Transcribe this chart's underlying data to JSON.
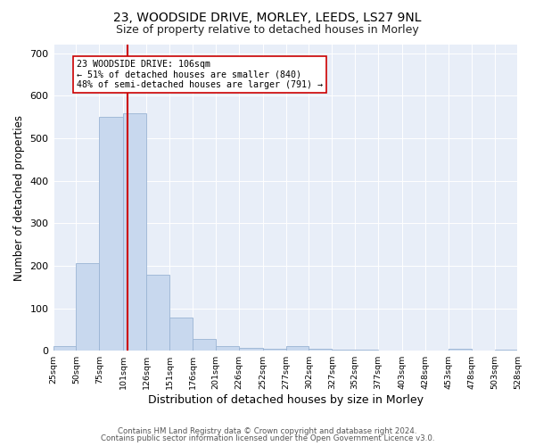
{
  "title1": "23, WOODSIDE DRIVE, MORLEY, LEEDS, LS27 9NL",
  "title2": "Size of property relative to detached houses in Morley",
  "xlabel": "Distribution of detached houses by size in Morley",
  "ylabel": "Number of detached properties",
  "footnote1": "Contains HM Land Registry data © Crown copyright and database right 2024.",
  "footnote2": "Contains public sector information licensed under the Open Government Licence v3.0.",
  "bin_edges": [
    25,
    50,
    75,
    101,
    126,
    151,
    176,
    201,
    226,
    252,
    277,
    302,
    327,
    352,
    377,
    403,
    428,
    453,
    478,
    503,
    528
  ],
  "bar_heights": [
    10,
    205,
    550,
    558,
    178,
    78,
    27,
    10,
    7,
    5,
    10,
    5,
    3,
    2,
    0,
    0,
    0,
    5,
    0,
    2
  ],
  "bar_color": "#c8d8ee",
  "bar_edgecolor": "#9ab4d4",
  "vline_x": 106,
  "vline_color": "#cc0000",
  "annotation_text": "23 WOODSIDE DRIVE: 106sqm\n← 51% of detached houses are smaller (840)\n48% of semi-detached houses are larger (791) →",
  "ylim": [
    0,
    720
  ],
  "yticks": [
    0,
    100,
    200,
    300,
    400,
    500,
    600,
    700
  ],
  "plot_bg_color": "#e8eef8",
  "title1_fontsize": 10,
  "title2_fontsize": 9,
  "xlabel_fontsize": 9,
  "ylabel_fontsize": 8.5
}
